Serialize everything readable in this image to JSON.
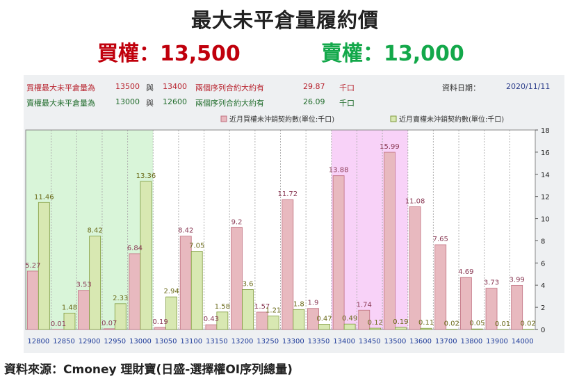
{
  "title": "最大未平倉量履約價",
  "headline": {
    "call": "買權：13,500",
    "put": "賣權：13,000",
    "call_color": "#c0000c",
    "put_color": "#13a84a"
  },
  "info": {
    "call_row": [
      "買權最大未平倉量為",
      "13500",
      "與",
      "13400",
      "兩個序列合約大約有",
      "29.87",
      "千口"
    ],
    "put_row": [
      "賣權最大未平倉量為",
      "13000",
      "與",
      "12600",
      "兩個序列合約大約有",
      "26.09",
      "千口"
    ],
    "date_label": "資料日期：",
    "date_value": "2020/11/11"
  },
  "footer": "資料來源：Cmoney 理財寶(日盛-選擇權OI序列總量)",
  "chart_data": {
    "type": "bar",
    "categories": [
      "12800",
      "12850",
      "12900",
      "12950",
      "13000",
      "13050",
      "13100",
      "13150",
      "13200",
      "13250",
      "13300",
      "13350",
      "13400",
      "13450",
      "13500",
      "13600",
      "13700",
      "13800",
      "13900",
      "14000"
    ],
    "series": [
      {
        "name": "近月買權未沖銷契約數(單位:千口)",
        "color": "#e8b9bf",
        "stroke": "#c07080",
        "values": [
          5.27,
          0.01,
          3.53,
          0.07,
          6.84,
          0.19,
          8.42,
          0.43,
          9.2,
          1.57,
          11.72,
          1.9,
          13.88,
          1.74,
          15.99,
          11.08,
          7.65,
          4.69,
          3.73,
          3.99
        ]
      },
      {
        "name": "近月賣權未沖銷契約數(單位:千口)",
        "color": "#d8e8b2",
        "stroke": "#7f9a3c",
        "values": [
          11.46,
          1.48,
          8.42,
          2.33,
          13.36,
          2.94,
          7.05,
          1.58,
          3.6,
          1.21,
          1.8,
          0.47,
          0.49,
          0.12,
          0.19,
          0.11,
          0.02,
          0.05,
          0.01,
          0.02
        ]
      }
    ],
    "ylim": [
      0,
      18
    ],
    "yticks": [
      0,
      2,
      4,
      6,
      8,
      10,
      12,
      14,
      16,
      18
    ],
    "highlight_green_range": [
      0,
      4
    ],
    "highlight_magenta_range": [
      12,
      14
    ],
    "highlight_green_color": "#d9f5d9",
    "highlight_magenta_color": "#f8d2f8",
    "legend_position": "top-right"
  }
}
